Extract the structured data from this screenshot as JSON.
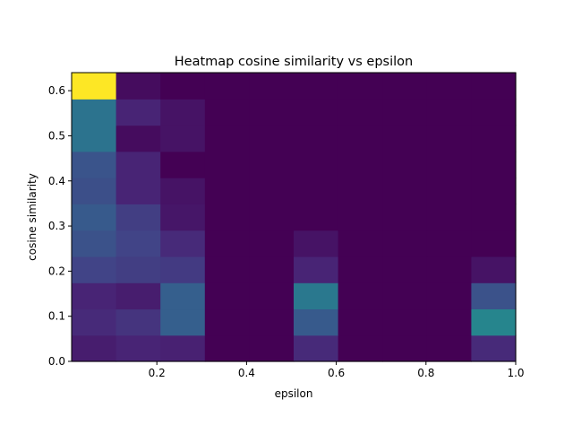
{
  "chart_data": {
    "type": "heatmap",
    "title": "Heatmap cosine similarity vs epsilon",
    "xlabel": "epsilon",
    "ylabel": "cosine similarity",
    "colormap": "viridis",
    "xlim": [
      0.01,
      1.0
    ],
    "ylim": [
      0.0,
      0.64
    ],
    "x_ticks": [
      0.2,
      0.4,
      0.6,
      0.8,
      1.0
    ],
    "x_tick_labels": [
      "0.2",
      "0.4",
      "0.6",
      "0.8",
      "1.0"
    ],
    "y_ticks": [
      0.0,
      0.1,
      0.2,
      0.3,
      0.4,
      0.5,
      0.6
    ],
    "y_tick_labels": [
      "0.0",
      "0.1",
      "0.2",
      "0.3",
      "0.4",
      "0.5",
      "0.6"
    ],
    "x_bin_edges": [
      0.01,
      0.109,
      0.208,
      0.307,
      0.406,
      0.505,
      0.604,
      0.703,
      0.802,
      0.901,
      1.0
    ],
    "y_bin_edges": [
      0.0,
      0.0582,
      0.1164,
      0.1745,
      0.2327,
      0.2909,
      0.3491,
      0.4073,
      0.4655,
      0.5236,
      0.5818,
      0.64
    ],
    "values_normalized_bottom_to_top": [
      [
        0.08,
        0.1,
        0.09,
        0.0,
        0.0,
        0.12,
        0.0,
        0.0,
        0.0,
        0.12
      ],
      [
        0.12,
        0.15,
        0.3,
        0.0,
        0.0,
        0.28,
        0.0,
        0.0,
        0.0,
        0.45
      ],
      [
        0.1,
        0.08,
        0.3,
        0.0,
        0.0,
        0.4,
        0.0,
        0.0,
        0.0,
        0.25
      ],
      [
        0.2,
        0.18,
        0.17,
        0.0,
        0.0,
        0.1,
        0.0,
        0.0,
        0.0,
        0.05
      ],
      [
        0.25,
        0.2,
        0.12,
        0.0,
        0.0,
        0.05,
        0.0,
        0.0,
        0.0,
        0.0
      ],
      [
        0.28,
        0.18,
        0.06,
        0.0,
        0.0,
        0.0,
        0.0,
        0.0,
        0.0,
        0.0
      ],
      [
        0.24,
        0.1,
        0.05,
        0.0,
        0.0,
        0.0,
        0.0,
        0.0,
        0.0,
        0.0
      ],
      [
        0.26,
        0.1,
        0.0,
        0.0,
        0.0,
        0.0,
        0.0,
        0.0,
        0.0,
        0.0
      ],
      [
        0.38,
        0.03,
        0.05,
        0.0,
        0.0,
        0.0,
        0.0,
        0.0,
        0.0,
        0.0
      ],
      [
        0.38,
        0.1,
        0.05,
        0.0,
        0.0,
        0.0,
        0.0,
        0.0,
        0.0,
        0.0
      ],
      [
        1.0,
        0.03,
        0.0,
        0.0,
        0.0,
        0.0,
        0.0,
        0.0,
        0.0,
        0.0
      ]
    ],
    "grid": false,
    "legend": "none"
  }
}
